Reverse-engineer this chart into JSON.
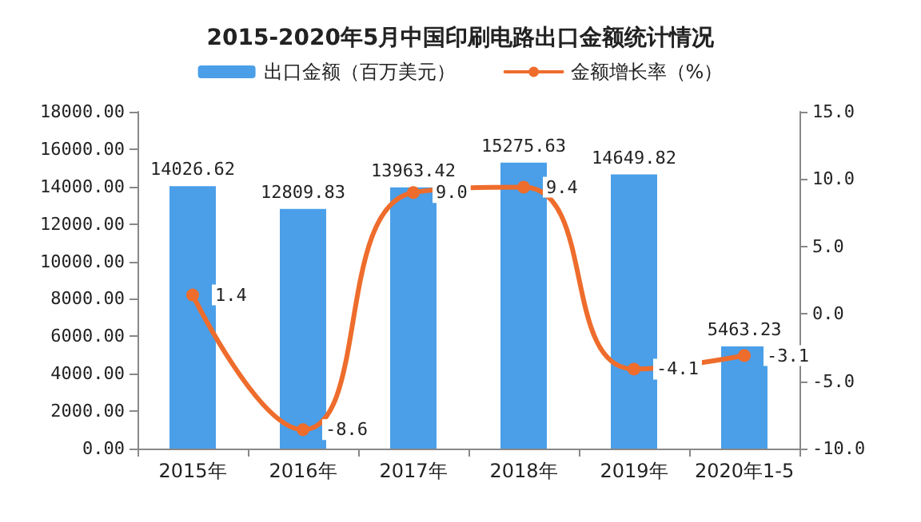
{
  "chart_data": {
    "type": "bar",
    "title": "2015-2020年5月中国印刷电路出口金额统计情况",
    "categories": [
      "2015年",
      "2016年",
      "2017年",
      "2018年",
      "2019年",
      "2020年1-5"
    ],
    "series": [
      {
        "name": "出口金额（百万美元）",
        "color": "#4a9fe8",
        "values": [
          14026.62,
          12809.83,
          13963.42,
          15275.63,
          14649.82,
          5463.23
        ],
        "value_labels": [
          "14026.62",
          "12809.83",
          "13963.42",
          "15275.63",
          "14649.82",
          "5463.23"
        ]
      },
      {
        "name": "金额增长率（%）",
        "type": "line",
        "axis": "y2",
        "color": "#ee6c2c",
        "values": [
          1.4,
          -8.6,
          9.0,
          9.4,
          -4.1,
          -3.1
        ],
        "value_labels": [
          "1.4",
          "-8.6",
          "9.0",
          "9.4",
          "-4.1",
          "-3.1"
        ]
      }
    ],
    "ylim": [
      0,
      18000
    ],
    "yticks": [
      {
        "value": 0,
        "label": "0.00"
      },
      {
        "value": 2000,
        "label": "2000.00"
      },
      {
        "value": 4000,
        "label": "4000.00"
      },
      {
        "value": 6000,
        "label": "6000.00"
      },
      {
        "value": 8000,
        "label": "8000.00"
      },
      {
        "value": 10000,
        "label": "10000.00"
      },
      {
        "value": 12000,
        "label": "12000.00"
      },
      {
        "value": 14000,
        "label": "14000.00"
      },
      {
        "value": 16000,
        "label": "16000.00"
      },
      {
        "value": 18000,
        "label": "18000.00"
      }
    ],
    "y2lim": [
      -10,
      15
    ],
    "y2ticks": [
      {
        "value": -10,
        "label": "-10.0"
      },
      {
        "value": -5,
        "label": "-5.0"
      },
      {
        "value": 0,
        "label": "0.0"
      },
      {
        "value": 5,
        "label": "5.0"
      },
      {
        "value": 10,
        "label": "10.0"
      },
      {
        "value": 15,
        "label": "15.0"
      }
    ],
    "legend": "top",
    "grid": false,
    "marker": "circle",
    "line_style": "solid"
  }
}
